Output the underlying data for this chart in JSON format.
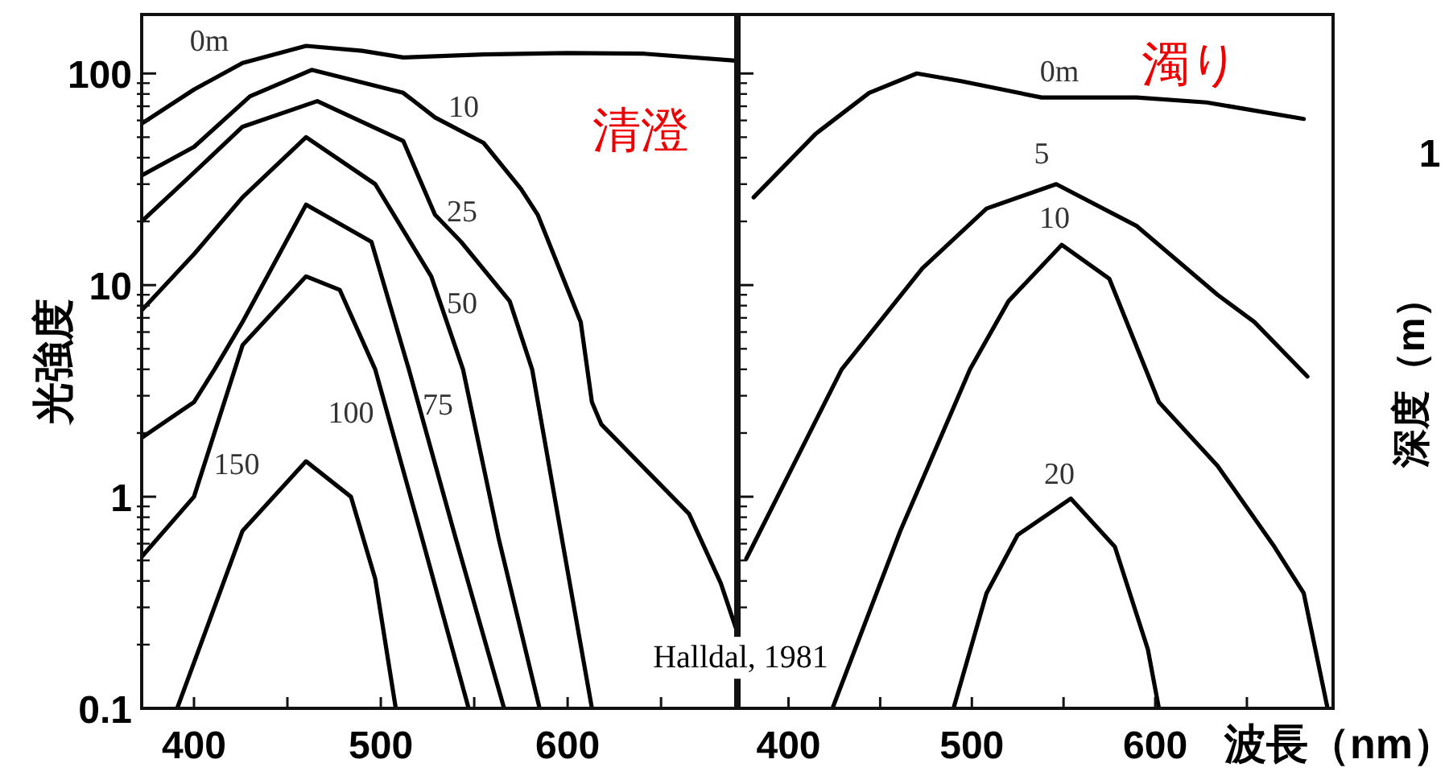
{
  "chart_data": [
    {
      "type": "line",
      "title": "清澄",
      "ylabel": "光強度",
      "log": "y",
      "xlim": [
        372,
        690
      ],
      "ylim": [
        0.1,
        190
      ],
      "xticks": [
        400,
        {
          "value": 450,
          "label": null
        },
        500,
        {
          "value": 550,
          "label": null
        },
        600,
        {
          "value": 650,
          "label": null
        }
      ],
      "yticks": [
        {
          "value": 0.1,
          "label": "0.1"
        },
        1,
        10,
        100
      ],
      "grid": false,
      "line_style": "solid",
      "marker": "none",
      "series": [
        {
          "color": "#000000",
          "x": [
            372,
            400,
            426,
            460,
            490,
            512,
            555,
            600,
            641,
            690
          ],
          "values": [
            58,
            84,
            112,
            135,
            128,
            119,
            123,
            125,
            124,
            115
          ]
        },
        {
          "color": "#000000",
          "x": [
            372,
            400,
            430,
            463,
            512,
            529,
            555,
            575,
            584,
            607,
            613,
            618,
            665,
            682,
            690
          ],
          "values": [
            33,
            45,
            78,
            104,
            81,
            62,
            47,
            28.5,
            21.5,
            6.7,
            2.8,
            2.2,
            0.83,
            0.39,
            0.24
          ]
        },
        {
          "color": "#000000",
          "x": [
            372,
            400,
            426,
            466,
            512,
            529,
            543,
            569,
            581,
            598,
            613
          ],
          "values": [
            20,
            34,
            56,
            74,
            48,
            21.5,
            16,
            8.4,
            4.0,
            0.56,
            0.1
          ]
        },
        {
          "color": "#000000",
          "x": [
            372,
            400,
            426,
            460,
            497,
            527,
            544,
            563,
            585
          ],
          "values": [
            7.6,
            14,
            26,
            50,
            30,
            11,
            4.0,
            0.64,
            0.1
          ]
        },
        {
          "color": "#000000",
          "x": [
            372,
            400,
            411,
            426,
            460,
            495,
            515,
            540,
            566
          ],
          "values": [
            1.9,
            2.8,
            4.0,
            6.7,
            24,
            16,
            4.0,
            0.64,
            0.1
          ]
        },
        {
          "color": "#000000",
          "x": [
            372,
            400,
            426,
            460,
            478,
            497,
            522,
            547
          ],
          "values": [
            0.52,
            1.0,
            5.2,
            11,
            9.5,
            4.0,
            0.64,
            0.1
          ]
        },
        {
          "color": "#000000",
          "x": [
            391,
            426,
            460,
            484,
            497,
            508
          ],
          "values": [
            0.1,
            0.69,
            1.47,
            1.0,
            0.41,
            0.1
          ]
        }
      ],
      "annotations": [
        "0m",
        "10",
        "25",
        "50",
        "75",
        "100",
        "150",
        "Halldal, 1981"
      ]
    },
    {
      "type": "line",
      "title": "濁り",
      "xlabel": "波長（nm）",
      "log": "y",
      "xlim": [
        373,
        697
      ],
      "ylim": [
        0.1,
        190
      ],
      "xticks": [
        400,
        {
          "value": 450,
          "label": null
        },
        500,
        {
          "value": 550,
          "label": null
        },
        600,
        {
          "value": 650,
          "label": null
        }
      ],
      "yticks": [
        {
          "value": 0.1,
          "label": null
        },
        {
          "value": 1,
          "label": null
        },
        {
          "value": 10,
          "label": null
        },
        {
          "value": 100,
          "label": null
        }
      ],
      "tick_labels": "x",
      "grid": false,
      "line_style": "solid",
      "marker": "none",
      "series": [
        {
          "color": "#000000",
          "x": [
            381,
            415,
            444,
            470,
            494,
            538,
            590,
            628,
            681
          ],
          "values": [
            26,
            52,
            81,
            100,
            92,
            77,
            77,
            73,
            61
          ]
        },
        {
          "color": "#000000",
          "x": [
            377,
            429,
            473,
            508,
            546,
            590,
            634,
            654,
            683
          ],
          "values": [
            0.51,
            4.0,
            12,
            23,
            30,
            19,
            9,
            6.7,
            3.7
          ]
        },
        {
          "color": "#000000",
          "x": [
            424,
            461,
            499,
            520,
            549,
            575,
            602,
            634,
            665,
            681,
            694
          ],
          "values": [
            0.1,
            0.69,
            4.0,
            8.4,
            15.5,
            10.7,
            2.8,
            1.4,
            0.58,
            0.35,
            0.1
          ]
        },
        {
          "color": "#000000",
          "x": [
            490,
            508,
            525,
            554,
            578,
            596,
            602
          ],
          "values": [
            0.1,
            0.35,
            0.66,
            0.98,
            0.58,
            0.19,
            0.1
          ]
        }
      ],
      "annotations": [
        "0m",
        "5",
        "10",
        "20",
        "1",
        "深度（m）"
      ]
    }
  ]
}
